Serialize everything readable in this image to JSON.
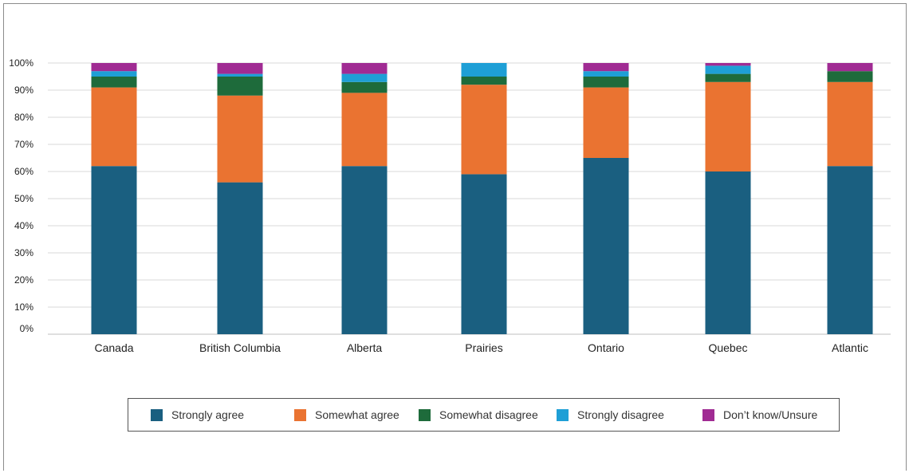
{
  "chart_data": {
    "type": "bar",
    "stacked": true,
    "title": "",
    "xlabel": "",
    "ylabel": "",
    "ylim": [
      0,
      100
    ],
    "y_ticks": [
      "0%",
      "10%",
      "20%",
      "30%",
      "40%",
      "50%",
      "60%",
      "70%",
      "80%",
      "90%",
      "100%"
    ],
    "categories": [
      "Canada",
      "British Columbia",
      "Alberta",
      "Prairies",
      "Ontario",
      "Quebec",
      "Atlantic"
    ],
    "series": [
      {
        "name": "Strongly agree",
        "color": "#1a5f80",
        "values": [
          62,
          56,
          62,
          59,
          65,
          60,
          62
        ]
      },
      {
        "name": "Somewhat agree",
        "color": "#ea7331",
        "values": [
          29,
          32,
          27,
          33,
          26,
          33,
          31
        ]
      },
      {
        "name": "Somewhat disagree",
        "color": "#1e6b3b",
        "values": [
          4,
          7,
          4,
          3,
          4,
          3,
          4
        ]
      },
      {
        "name": "Strongly disagree",
        "color": "#1e9fd6",
        "values": [
          2,
          1,
          3,
          5,
          2,
          3,
          0
        ]
      },
      {
        "name": "Don’t know/Unsure",
        "color": "#a02b93",
        "values": [
          3,
          4,
          4,
          0,
          3,
          1,
          3
        ]
      }
    ],
    "grid": true,
    "legend_position": "bottom"
  }
}
